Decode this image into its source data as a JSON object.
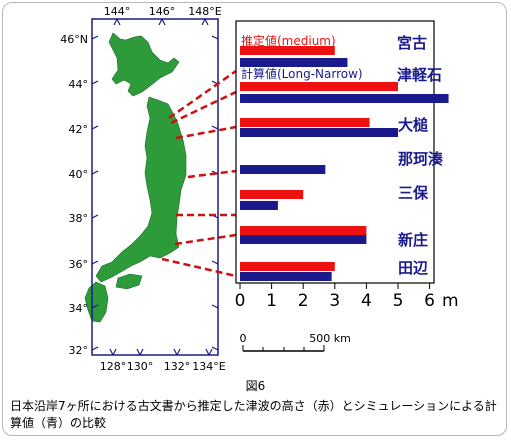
{
  "map": {
    "lon_ticks_top": [
      "144°",
      "146°",
      "148°E"
    ],
    "lon_ticks_bottom": [
      "128°",
      "130°",
      "132°",
      "134°E"
    ],
    "lat_ticks": [
      "46°N",
      "44°",
      "42°",
      "40°",
      "38°",
      "36°",
      "34°",
      "32°"
    ],
    "scale_bar": {
      "start_label": "0",
      "end_label": "500 km"
    },
    "land_color": "#2e9b3a",
    "frame_color": "#1a1a8c",
    "connector_color": "#cc1111"
  },
  "chart_data": {
    "type": "bar",
    "orientation": "horizontal",
    "categories": [
      "宮古",
      "津軽石",
      "大槌",
      "那珂湊",
      "三保",
      "新庄",
      "田辺"
    ],
    "series": [
      {
        "name": "推定値(medium)",
        "color": "#ee1111",
        "values": [
          3.0,
          5.0,
          4.1,
          null,
          2.0,
          4.0,
          3.0
        ]
      },
      {
        "name": "計算値(Long-Narrow)",
        "color": "#1a1a8c",
        "values": [
          3.4,
          6.6,
          5.0,
          2.7,
          1.2,
          4.0,
          2.9
        ]
      }
    ],
    "x_ticks": [
      "0",
      "1",
      "2",
      "3",
      "4",
      "5",
      "6"
    ],
    "x_unit": "m",
    "xlim": [
      0,
      6.5
    ],
    "legend_position": "top-left"
  },
  "figure_label": "図6",
  "caption": "日本沿岸7ヶ所における古文書から推定した津波の高さ（赤）とシミュレーションによる計算値（青）の比較"
}
